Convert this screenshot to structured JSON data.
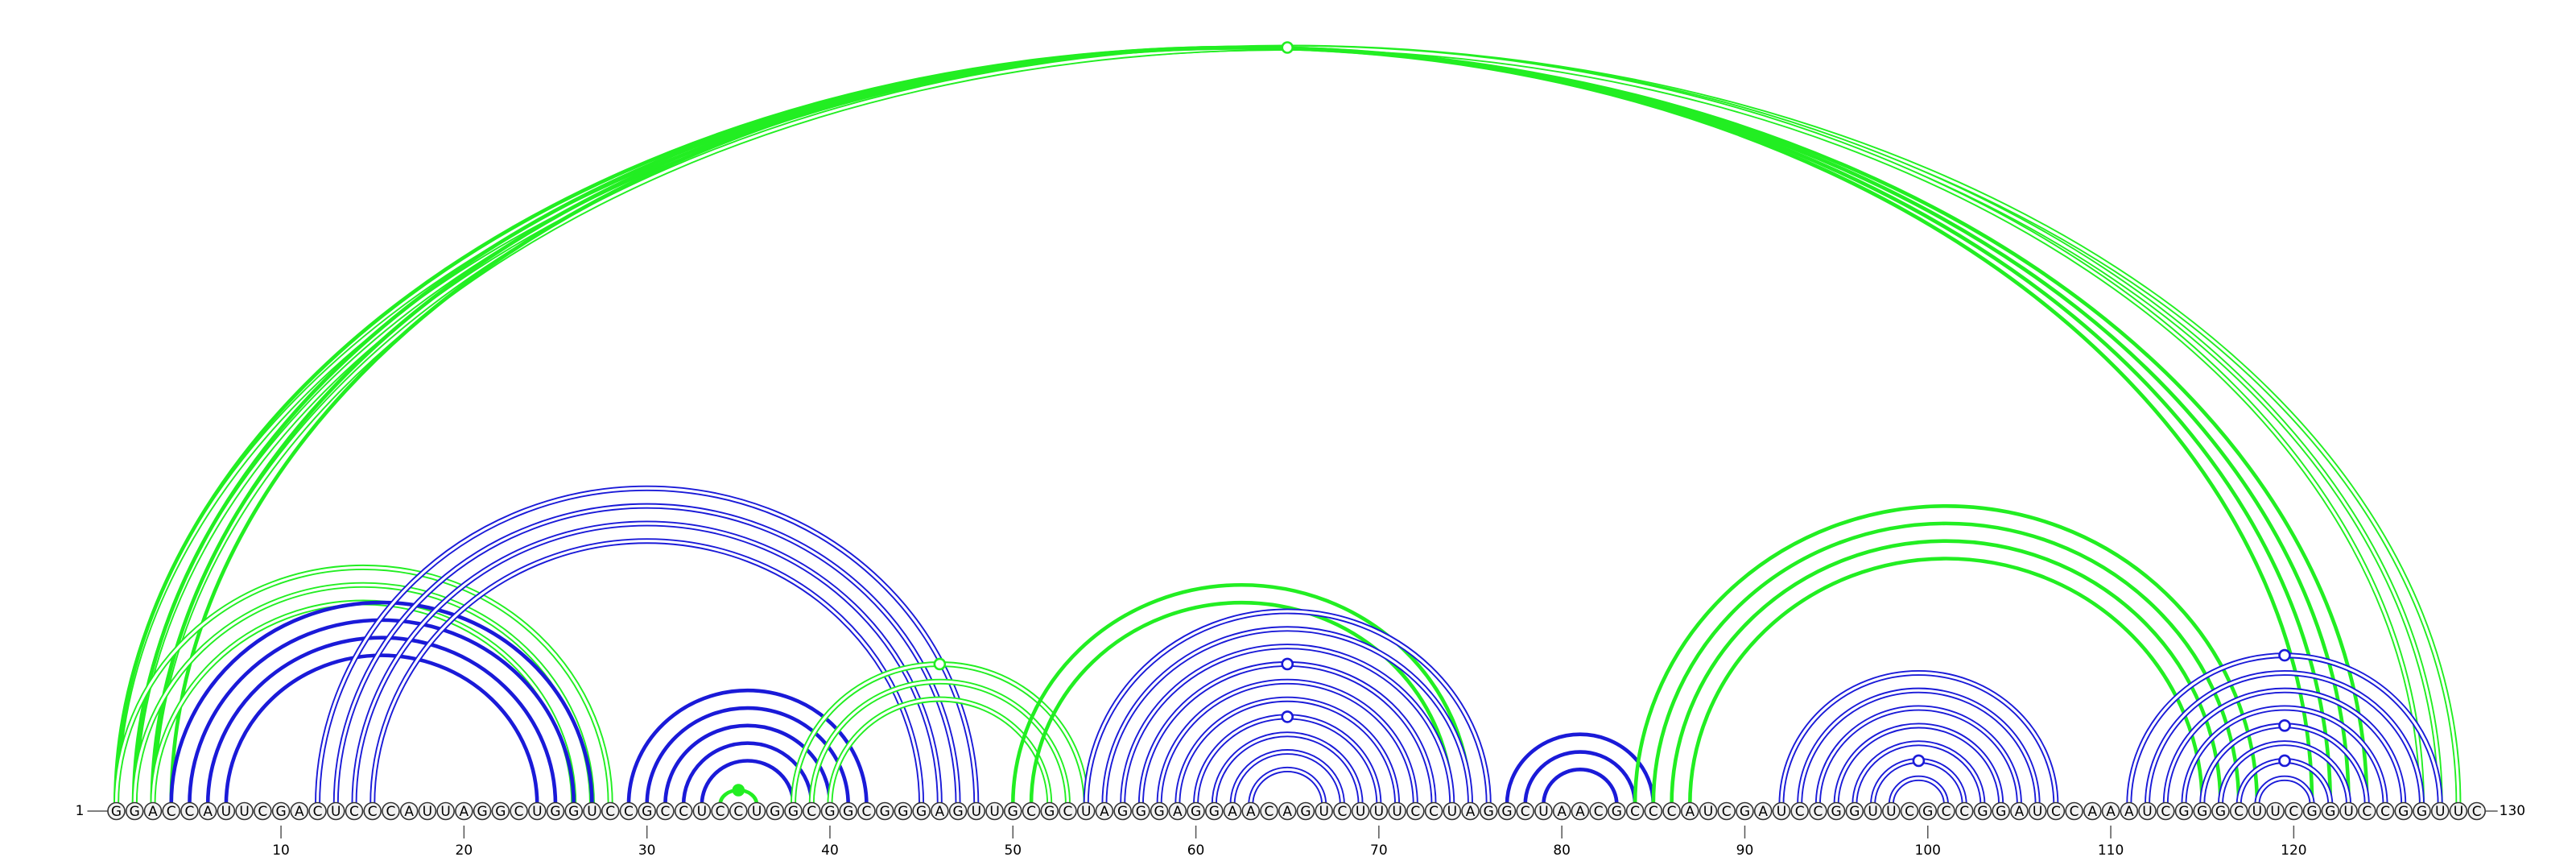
{
  "sequence": "GGACCAUUCGACUCCCAUUAGGCUGGUCCGCCUCCUGGCGGCGGGAGUUGCGCUAGGGAGGAACAGUCUUUCCUAGGCUAACGCCCAUCGAUCCGGUUCGCCGGAUCCAAAUCGGGCUUCGGUCCGGUUC",
  "start_label": "1",
  "end_label": "130",
  "ticks": [
    "10",
    "20",
    "30",
    "40",
    "50",
    "60",
    "70",
    "80",
    "90",
    "100",
    "110",
    "120"
  ],
  "colors": {
    "green": "#22ee22",
    "blue": "#1a1ad8"
  },
  "arc_groups": [
    {
      "color": "green",
      "style": "double",
      "pairs": [
        [
          1,
          129
        ],
        [
          2,
          128
        ],
        [
          3,
          127
        ]
      ]
    },
    {
      "color": "green",
      "style": "thick",
      "pairs": [
        [
          1,
          124
        ],
        [
          2,
          123
        ],
        [
          3,
          122
        ],
        [
          4,
          121
        ]
      ]
    },
    {
      "color": "green",
      "style": "double",
      "pairs": [
        [
          1,
          28
        ],
        [
          2,
          27
        ],
        [
          3,
          26
        ]
      ]
    },
    {
      "color": "blue",
      "style": "thick",
      "pairs": [
        [
          4,
          27
        ],
        [
          5,
          26
        ],
        [
          6,
          25
        ],
        [
          7,
          24
        ]
      ]
    },
    {
      "color": "blue",
      "style": "double",
      "pairs": [
        [
          12,
          48
        ],
        [
          13,
          47
        ],
        [
          14,
          46
        ],
        [
          15,
          45
        ]
      ]
    },
    {
      "color": "blue",
      "style": "thick",
      "pairs": [
        [
          29,
          42
        ],
        [
          30,
          41
        ],
        [
          31,
          40
        ],
        [
          32,
          39
        ],
        [
          33,
          38
        ]
      ]
    },
    {
      "color": "green",
      "style": "thick",
      "pairs": [
        [
          34,
          36
        ]
      ]
    },
    {
      "color": "green",
      "style": "double",
      "pairs": [
        [
          38,
          54
        ],
        [
          39,
          53
        ],
        [
          40,
          52
        ]
      ]
    },
    {
      "color": "green",
      "style": "thick",
      "pairs": [
        [
          50,
          75
        ],
        [
          51,
          74
        ]
      ]
    },
    {
      "color": "blue",
      "style": "double",
      "pairs": [
        [
          54,
          76
        ],
        [
          55,
          75
        ],
        [
          56,
          74
        ],
        [
          57,
          73
        ],
        [
          58,
          72
        ],
        [
          59,
          71
        ],
        [
          60,
          70
        ],
        [
          61,
          69
        ],
        [
          62,
          68
        ],
        [
          63,
          67
        ]
      ]
    },
    {
      "color": "blue",
      "style": "thick",
      "pairs": [
        [
          77,
          85
        ],
        [
          78,
          84
        ],
        [
          79,
          83
        ]
      ]
    },
    {
      "color": "green",
      "style": "thick",
      "pairs": [
        [
          84,
          118
        ],
        [
          85,
          117
        ],
        [
          86,
          116
        ],
        [
          87,
          115
        ]
      ]
    },
    {
      "color": "blue",
      "style": "double",
      "pairs": [
        [
          92,
          107
        ],
        [
          93,
          106
        ],
        [
          94,
          105
        ],
        [
          95,
          104
        ],
        [
          96,
          103
        ],
        [
          97,
          102
        ],
        [
          98,
          101
        ]
      ]
    },
    {
      "color": "blue",
      "style": "double",
      "pairs": [
        [
          111,
          128
        ],
        [
          112,
          127
        ],
        [
          113,
          126
        ],
        [
          114,
          125
        ],
        [
          115,
          124
        ],
        [
          116,
          123
        ],
        [
          117,
          122
        ],
        [
          118,
          121
        ]
      ]
    }
  ],
  "markers": [
    {
      "color": "green",
      "filled": false,
      "i": 1,
      "j": 129
    },
    {
      "color": "green",
      "filled": true,
      "i": 34,
      "j": 36
    },
    {
      "color": "green",
      "filled": false,
      "i": 38,
      "j": 54
    },
    {
      "color": "blue",
      "filled": false,
      "i": 57,
      "j": 73
    },
    {
      "color": "blue",
      "filled": false,
      "i": 60,
      "j": 70
    },
    {
      "color": "blue",
      "filled": false,
      "i": 97,
      "j": 102
    },
    {
      "color": "blue",
      "filled": false,
      "i": 111,
      "j": 128
    },
    {
      "color": "blue",
      "filled": false,
      "i": 115,
      "j": 124
    },
    {
      "color": "blue",
      "filled": false,
      "i": 117,
      "j": 122
    }
  ]
}
